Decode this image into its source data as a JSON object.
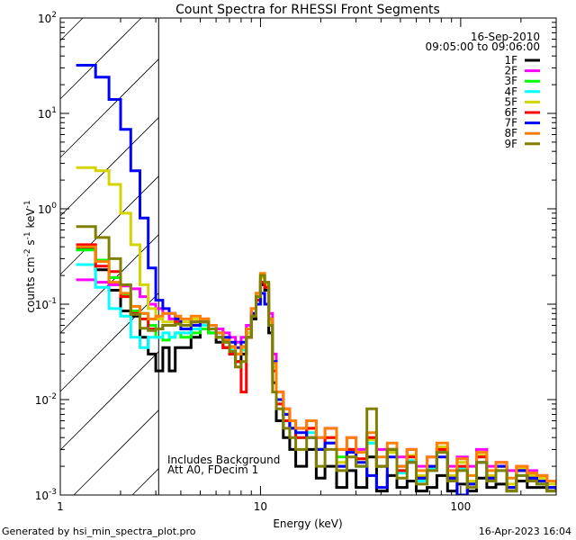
{
  "chart_data": {
    "type": "line",
    "title": "Count Spectra for RHESSI Front Segments",
    "xlabel": "Energy (keV)",
    "ylabel_parts": [
      "counts cm",
      "-2",
      " s",
      "-1",
      " keV",
      "-1"
    ],
    "xscale": "log",
    "yscale": "log",
    "xlim": [
      1,
      300
    ],
    "ylim": [
      0.001,
      100
    ],
    "x_ticks": [
      {
        "value": 1,
        "label": "1"
      },
      {
        "value": 10,
        "label": "10"
      },
      {
        "value": 100,
        "label": "100"
      }
    ],
    "y_ticks": [
      {
        "value": 0.001,
        "base": "10",
        "exp": "-3"
      },
      {
        "value": 0.01,
        "base": "10",
        "exp": "-2"
      },
      {
        "value": 0.1,
        "base": "10",
        "exp": "-1"
      },
      {
        "value": 1,
        "base": "10",
        "exp": "0"
      },
      {
        "value": 10,
        "base": "10",
        "exp": "1"
      },
      {
        "value": 100,
        "base": "10",
        "exp": "2"
      }
    ],
    "hatch_max_energy": 3.1,
    "date": "16-Sep-2010",
    "time_range": "09:05:00 to 09:06:00",
    "annotations": [
      "Includes Background",
      "Att A0, FDecim 1"
    ],
    "legend_position": "top-right",
    "energy": [
      1.2,
      1.5,
      1.75,
      2.0,
      2.25,
      2.5,
      2.75,
      3.0,
      3.25,
      3.5,
      3.75,
      4,
      4.5,
      5,
      5.5,
      6,
      6.5,
      7,
      7.5,
      8,
      8.5,
      9,
      9.5,
      10,
      10.5,
      11,
      11.5,
      12,
      13,
      14,
      15,
      17,
      19,
      21,
      24,
      27,
      30,
      34,
      38,
      43,
      48,
      54,
      60,
      68,
      76,
      86,
      96,
      108,
      120,
      135,
      150,
      170,
      190,
      215,
      240,
      270,
      300
    ],
    "series": [
      {
        "name": "1F",
        "color": "#000000",
        "values": [
          0.38,
          0.23,
          0.14,
          0.085,
          0.075,
          0.045,
          0.03,
          0.02,
          0.035,
          0.02,
          0.035,
          0.035,
          0.045,
          0.06,
          0.05,
          0.04,
          0.035,
          0.03,
          0.025,
          0.03,
          0.045,
          0.07,
          0.11,
          0.16,
          0.14,
          0.05,
          0.015,
          0.006,
          0.004,
          0.003,
          0.002,
          0.003,
          0.0015,
          0.002,
          0.0012,
          0.0018,
          0.0012,
          0.0025,
          0.0011,
          0.0016,
          0.0012,
          0.0014,
          0.0011,
          0.0012,
          0.0016,
          0.0011,
          0.0013,
          0.0011,
          0.0015,
          0.0012,
          0.0013,
          0.0011,
          0.0014,
          0.0012,
          0.0012,
          0.0011,
          0.0011
        ]
      },
      {
        "name": "2F",
        "color": "#ff00ff",
        "values": [
          0.18,
          0.17,
          0.16,
          0.155,
          0.145,
          0.12,
          0.1,
          0.09,
          0.08,
          0.07,
          0.065,
          0.06,
          0.065,
          0.07,
          0.06,
          0.055,
          0.05,
          0.045,
          0.04,
          0.045,
          0.06,
          0.09,
          0.13,
          0.17,
          0.16,
          0.08,
          0.03,
          0.012,
          0.008,
          0.006,
          0.005,
          0.006,
          0.004,
          0.005,
          0.003,
          0.004,
          0.003,
          0.004,
          0.003,
          0.003,
          0.0025,
          0.003,
          0.002,
          0.0025,
          0.003,
          0.002,
          0.0025,
          0.002,
          0.003,
          0.002,
          0.0022,
          0.0018,
          0.002,
          0.0018,
          0.0016,
          0.0014,
          0.0013
        ]
      },
      {
        "name": "3F",
        "color": "#00ff00",
        "values": [
          0.37,
          0.29,
          0.19,
          0.125,
          0.085,
          0.08,
          0.06,
          0.045,
          0.042,
          0.045,
          0.05,
          0.045,
          0.05,
          0.055,
          0.05,
          0.045,
          0.04,
          0.035,
          0.03,
          0.035,
          0.05,
          0.08,
          0.12,
          0.2,
          0.17,
          0.07,
          0.025,
          0.01,
          0.007,
          0.005,
          0.004,
          0.005,
          0.003,
          0.004,
          0.0025,
          0.003,
          0.002,
          0.0035,
          0.002,
          0.003,
          0.0018,
          0.0025,
          0.0015,
          0.002,
          0.003,
          0.0015,
          0.002,
          0.0013,
          0.0025,
          0.0015,
          0.002,
          0.0012,
          0.0018,
          0.0015,
          0.0014,
          0.0012,
          0.0012
        ]
      },
      {
        "name": "4F",
        "color": "#00ffff",
        "values": [
          0.26,
          0.15,
          0.09,
          0.075,
          0.045,
          0.035,
          0.045,
          0.045,
          0.05,
          0.045,
          0.05,
          0.05,
          0.055,
          0.06,
          0.055,
          0.045,
          0.04,
          0.033,
          0.03,
          0.033,
          0.05,
          0.08,
          0.12,
          0.19,
          0.16,
          0.06,
          0.02,
          0.009,
          0.006,
          0.005,
          0.004,
          0.0045,
          0.003,
          0.0035,
          0.002,
          0.003,
          0.002,
          0.0035,
          0.002,
          0.0028,
          0.0017,
          0.0023,
          0.0014,
          0.0019,
          0.0028,
          0.0015,
          0.0019,
          0.0013,
          0.0022,
          0.0014,
          0.0018,
          0.0012,
          0.0016,
          0.0014,
          0.0013,
          0.0012,
          0.0011
        ]
      },
      {
        "name": "5F",
        "color": "#d4d400",
        "values": [
          2.7,
          2.5,
          1.8,
          0.9,
          0.42,
          0.16,
          0.09,
          0.07,
          0.065,
          0.065,
          0.07,
          0.065,
          0.07,
          0.07,
          0.06,
          0.05,
          0.04,
          0.035,
          0.03,
          0.035,
          0.05,
          0.08,
          0.12,
          0.19,
          0.16,
          0.065,
          0.022,
          0.01,
          0.007,
          0.005,
          0.004,
          0.005,
          0.003,
          0.004,
          0.0022,
          0.003,
          0.0024,
          0.0038,
          0.002,
          0.0028,
          0.0018,
          0.0026,
          0.0016,
          0.002,
          0.0032,
          0.0016,
          0.0022,
          0.0014,
          0.0026,
          0.0016,
          0.002,
          0.0013,
          0.0019,
          0.0016,
          0.0015,
          0.0013,
          0.0012
        ]
      },
      {
        "name": "6F",
        "color": "#ff0000",
        "values": [
          0.42,
          0.25,
          0.22,
          0.12,
          0.08,
          0.07,
          0.055,
          0.055,
          0.06,
          0.06,
          0.065,
          0.06,
          0.065,
          0.065,
          0.055,
          0.045,
          0.035,
          0.03,
          0.025,
          0.012,
          0.045,
          0.075,
          0.11,
          0.17,
          0.15,
          0.06,
          0.02,
          0.009,
          0.006,
          0.005,
          0.004,
          0.005,
          0.003,
          0.004,
          0.002,
          0.003,
          0.0024,
          0.004,
          0.002,
          0.003,
          0.0018,
          0.0025,
          0.0015,
          0.002,
          0.003,
          0.0015,
          0.002,
          0.0013,
          0.0025,
          0.0015,
          0.002,
          0.0012,
          0.0018,
          0.0015,
          0.0014,
          0.0012,
          0.0011
        ]
      },
      {
        "name": "7F",
        "color": "#0000ff",
        "values": [
          32,
          24,
          14,
          6.8,
          2.5,
          0.8,
          0.24,
          0.11,
          0.09,
          0.08,
          0.07,
          0.055,
          0.06,
          0.065,
          0.06,
          0.05,
          0.045,
          0.04,
          0.035,
          0.04,
          0.055,
          0.08,
          0.1,
          0.13,
          0.1,
          0.07,
          0.025,
          0.01,
          0.007,
          0.005,
          0.0045,
          0.004,
          0.003,
          0.0035,
          0.002,
          0.0028,
          0.0022,
          0.0016,
          0.0012,
          0.0025,
          0.002,
          0.0022,
          0.0015,
          0.002,
          0.0025,
          0.0015,
          0.001,
          0.0013,
          0.0022,
          0.0015,
          0.002,
          0.0012,
          0.0018,
          0.0015,
          0.0014,
          0.0012,
          0.0011
        ]
      },
      {
        "name": "8F",
        "color": "#ff8000",
        "values": [
          0.4,
          0.28,
          0.17,
          0.13,
          0.095,
          0.08,
          0.07,
          0.075,
          0.08,
          0.08,
          0.075,
          0.07,
          0.075,
          0.07,
          0.06,
          0.05,
          0.042,
          0.036,
          0.03,
          0.036,
          0.055,
          0.09,
          0.13,
          0.21,
          0.17,
          0.07,
          0.024,
          0.012,
          0.008,
          0.006,
          0.005,
          0.006,
          0.004,
          0.005,
          0.003,
          0.004,
          0.0028,
          0.0045,
          0.0025,
          0.0035,
          0.002,
          0.003,
          0.0018,
          0.0025,
          0.0035,
          0.0018,
          0.0024,
          0.0016,
          0.0028,
          0.0018,
          0.0022,
          0.0015,
          0.002,
          0.0017,
          0.0016,
          0.0014,
          0.0013
        ]
      },
      {
        "name": "9F",
        "color": "#808000",
        "values": [
          0.65,
          0.5,
          0.3,
          0.16,
          0.078,
          0.056,
          0.053,
          0.055,
          0.06,
          0.06,
          0.062,
          0.06,
          0.065,
          0.065,
          0.055,
          0.045,
          0.04,
          0.032,
          0.022,
          0.025,
          0.045,
          0.075,
          0.12,
          0.2,
          0.17,
          0.06,
          0.012,
          0.008,
          0.005,
          0.004,
          0.003,
          0.004,
          0.002,
          0.003,
          0.0018,
          0.0025,
          0.002,
          0.008,
          0.002,
          0.003,
          0.0015,
          0.0022,
          0.0013,
          0.0018,
          0.0028,
          0.0014,
          0.0018,
          0.0012,
          0.0022,
          0.0014,
          0.0018,
          0.0011,
          0.0016,
          0.0014,
          0.0013,
          0.0011,
          0.0011
        ]
      }
    ]
  },
  "footer": {
    "generated_by": "Generated by hsi_min_spectra_plot.pro",
    "timestamp": "16-Apr-2023 16:04"
  }
}
